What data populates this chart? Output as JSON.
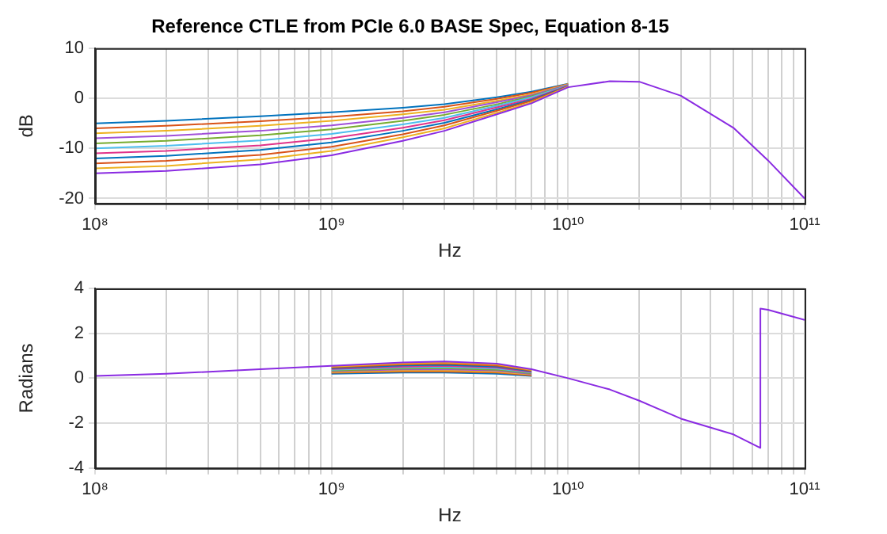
{
  "chart_data": [
    {
      "type": "line",
      "title": "Reference CTLE from PCIe 6.0 BASE Spec, Equation 8-15",
      "xlabel": "Hz",
      "ylabel": "dB",
      "log": "x",
      "grid": true,
      "marker": "none",
      "line_style": "solid",
      "x": [
        100000000.0,
        200000000.0,
        500000000.0,
        1000000000.0,
        2000000000.0,
        3000000000.0,
        5000000000.0,
        7000000000.0,
        10000000000.0,
        15000000000.0,
        20000000000.0,
        30000000000.0,
        50000000000.0,
        70000000000.0,
        100000000000.0
      ],
      "xlim": [
        100000000.0,
        100000000000.0
      ],
      "xticks": [
        {
          "value": 100000000.0,
          "label": "10⁸"
        },
        {
          "value": 200000000.0,
          "label": null
        },
        {
          "value": 300000000.0,
          "label": null
        },
        {
          "value": 400000000.0,
          "label": null
        },
        {
          "value": 500000000.0,
          "label": null
        },
        {
          "value": 600000000.0,
          "label": null
        },
        {
          "value": 700000000.0,
          "label": null
        },
        {
          "value": 800000000.0,
          "label": null
        },
        {
          "value": 900000000.0,
          "label": null
        },
        {
          "value": 1000000000.0,
          "label": "10⁹"
        },
        {
          "value": 2000000000.0,
          "label": null
        },
        {
          "value": 3000000000.0,
          "label": null
        },
        {
          "value": 4000000000.0,
          "label": null
        },
        {
          "value": 5000000000.0,
          "label": null
        },
        {
          "value": 6000000000.0,
          "label": null
        },
        {
          "value": 7000000000.0,
          "label": null
        },
        {
          "value": 8000000000.0,
          "label": null
        },
        {
          "value": 9000000000.0,
          "label": null
        },
        {
          "value": 10000000000.0,
          "label": "10¹⁰"
        },
        {
          "value": 20000000000.0,
          "label": null
        },
        {
          "value": 30000000000.0,
          "label": null
        },
        {
          "value": 40000000000.0,
          "label": null
        },
        {
          "value": 50000000000.0,
          "label": null
        },
        {
          "value": 60000000000.0,
          "label": null
        },
        {
          "value": 70000000000.0,
          "label": null
        },
        {
          "value": 80000000000.0,
          "label": null
        },
        {
          "value": 90000000000.0,
          "label": null
        },
        {
          "value": 100000000000.0,
          "label": "10¹¹"
        }
      ],
      "ylim": [
        -21,
        10
      ],
      "yticks": [
        -20,
        -10,
        0,
        10
      ],
      "series": [
        {
          "color": "#0072bd",
          "values": [
            -5,
            -4.5,
            -3.6,
            -2.8,
            -1.9,
            -1.2,
            0.2,
            1.3,
            2.9,
            null,
            null,
            null,
            null,
            null,
            null
          ]
        },
        {
          "color": "#d95319",
          "values": [
            -6,
            -5.5,
            -4.6,
            -3.7,
            -2.6,
            -1.7,
            -0.1,
            1.1,
            2.8,
            null,
            null,
            null,
            null,
            null,
            null
          ]
        },
        {
          "color": "#edb120",
          "values": [
            -7,
            -6.5,
            -5.5,
            -4.5,
            -3.2,
            -2.3,
            -0.5,
            0.8,
            2.8,
            null,
            null,
            null,
            null,
            null,
            null
          ]
        },
        {
          "color": "#a04fd8",
          "values": [
            -8,
            -7.5,
            -6.5,
            -5.4,
            -3.9,
            -2.8,
            -0.8,
            0.6,
            2.7,
            null,
            null,
            null,
            null,
            null,
            null
          ]
        },
        {
          "color": "#77ac30",
          "values": [
            -9,
            -8.5,
            -7.4,
            -6.2,
            -4.5,
            -3.3,
            -1.2,
            0.4,
            2.6,
            null,
            null,
            null,
            null,
            null,
            null
          ]
        },
        {
          "color": "#4dbeee",
          "values": [
            -10,
            -9.5,
            -8.4,
            -7.1,
            -5.2,
            -3.9,
            -1.5,
            0.2,
            2.6,
            null,
            null,
            null,
            null,
            null,
            null
          ]
        },
        {
          "color": "#e0338a",
          "values": [
            -11,
            -10.5,
            -9.4,
            -8.0,
            -5.9,
            -4.4,
            -1.8,
            -0.1,
            2.5,
            null,
            null,
            null,
            null,
            null,
            null
          ]
        },
        {
          "color": "#0072bd",
          "values": [
            -12,
            -11.5,
            -10.3,
            -8.8,
            -6.5,
            -4.9,
            -2.2,
            -0.3,
            2.4,
            null,
            null,
            null,
            null,
            null,
            null
          ]
        },
        {
          "color": "#d95319",
          "values": [
            -13,
            -12.5,
            -11.3,
            -9.7,
            -7.2,
            -5.4,
            -2.5,
            -0.5,
            2.3,
            null,
            null,
            null,
            null,
            null,
            null
          ]
        },
        {
          "color": "#edb120",
          "values": [
            -14,
            -13.5,
            -12.2,
            -10.5,
            -7.8,
            -6.0,
            -2.9,
            -0.8,
            2.3,
            null,
            null,
            null,
            null,
            null,
            null
          ]
        },
        {
          "color": "#8a2be2",
          "values": [
            -15,
            -14.5,
            -13.2,
            -11.4,
            -8.5,
            -6.5,
            -3.2,
            -1.0,
            2.2,
            3.4,
            3.3,
            0.5,
            -5.9,
            -12.4,
            -20
          ]
        }
      ]
    },
    {
      "type": "line",
      "xlabel": "Hz",
      "ylabel": "Radians",
      "log": "x",
      "grid": true,
      "marker": "none",
      "line_style": "solid",
      "x": [
        100000000.0,
        200000000.0,
        500000000.0,
        1000000000.0,
        2000000000.0,
        3000000000.0,
        5000000000.0,
        7000000000.0,
        10000000000.0,
        15000000000.0,
        20000000000.0,
        30000000000.0,
        50000000000.0,
        65000000000.0,
        65000000000.0,
        70000000000.0,
        100000000000.0
      ],
      "xlim": [
        100000000.0,
        100000000000.0
      ],
      "xticks": [
        {
          "value": 100000000.0,
          "label": "10⁸"
        },
        {
          "value": 200000000.0,
          "label": null
        },
        {
          "value": 300000000.0,
          "label": null
        },
        {
          "value": 400000000.0,
          "label": null
        },
        {
          "value": 500000000.0,
          "label": null
        },
        {
          "value": 600000000.0,
          "label": null
        },
        {
          "value": 700000000.0,
          "label": null
        },
        {
          "value": 800000000.0,
          "label": null
        },
        {
          "value": 900000000.0,
          "label": null
        },
        {
          "value": 1000000000.0,
          "label": "10⁹"
        },
        {
          "value": 2000000000.0,
          "label": null
        },
        {
          "value": 3000000000.0,
          "label": null
        },
        {
          "value": 4000000000.0,
          "label": null
        },
        {
          "value": 5000000000.0,
          "label": null
        },
        {
          "value": 6000000000.0,
          "label": null
        },
        {
          "value": 7000000000.0,
          "label": null
        },
        {
          "value": 8000000000.0,
          "label": null
        },
        {
          "value": 9000000000.0,
          "label": null
        },
        {
          "value": 10000000000.0,
          "label": "10¹⁰"
        },
        {
          "value": 20000000000.0,
          "label": null
        },
        {
          "value": 30000000000.0,
          "label": null
        },
        {
          "value": 40000000000.0,
          "label": null
        },
        {
          "value": 50000000000.0,
          "label": null
        },
        {
          "value": 60000000000.0,
          "label": null
        },
        {
          "value": 70000000000.0,
          "label": null
        },
        {
          "value": 80000000000.0,
          "label": null
        },
        {
          "value": 90000000000.0,
          "label": null
        },
        {
          "value": 100000000000.0,
          "label": "10¹¹"
        }
      ],
      "ylim": [
        -4,
        4
      ],
      "yticks": [
        -4,
        -2,
        0,
        2,
        4
      ],
      "series": [
        {
          "color": "#0072bd",
          "values": [
            null,
            null,
            null,
            0.2,
            0.25,
            0.25,
            0.2,
            0.1,
            null,
            null,
            null,
            null,
            null,
            null,
            null,
            null,
            null
          ]
        },
        {
          "color": "#d95319",
          "values": [
            null,
            null,
            null,
            0.24,
            0.3,
            0.3,
            0.25,
            0.13,
            null,
            null,
            null,
            null,
            null,
            null,
            null,
            null,
            null
          ]
        },
        {
          "color": "#edb120",
          "values": [
            null,
            null,
            null,
            0.27,
            0.34,
            0.35,
            0.29,
            0.16,
            null,
            null,
            null,
            null,
            null,
            null,
            null,
            null,
            null
          ]
        },
        {
          "color": "#a04fd8",
          "values": [
            null,
            null,
            null,
            0.31,
            0.39,
            0.4,
            0.34,
            0.19,
            null,
            null,
            null,
            null,
            null,
            null,
            null,
            null,
            null
          ]
        },
        {
          "color": "#77ac30",
          "values": [
            null,
            null,
            null,
            0.34,
            0.43,
            0.45,
            0.38,
            0.22,
            null,
            null,
            null,
            null,
            null,
            null,
            null,
            null,
            null
          ]
        },
        {
          "color": "#4dbeee",
          "values": [
            null,
            null,
            null,
            0.38,
            0.48,
            0.5,
            0.43,
            0.25,
            null,
            null,
            null,
            null,
            null,
            null,
            null,
            null,
            null
          ]
        },
        {
          "color": "#e0338a",
          "values": [
            null,
            null,
            null,
            0.41,
            0.52,
            0.55,
            0.47,
            0.28,
            null,
            null,
            null,
            null,
            null,
            null,
            null,
            null,
            null
          ]
        },
        {
          "color": "#0072bd",
          "values": [
            null,
            null,
            null,
            0.45,
            0.57,
            0.6,
            0.52,
            0.31,
            null,
            null,
            null,
            null,
            null,
            null,
            null,
            null,
            null
          ]
        },
        {
          "color": "#d95319",
          "values": [
            null,
            null,
            null,
            0.48,
            0.61,
            0.65,
            0.56,
            0.34,
            null,
            null,
            null,
            null,
            null,
            null,
            null,
            null,
            null
          ]
        },
        {
          "color": "#edb120",
          "values": [
            null,
            null,
            null,
            0.52,
            0.66,
            0.7,
            0.61,
            0.37,
            null,
            null,
            null,
            null,
            null,
            null,
            null,
            null,
            null
          ]
        },
        {
          "color": "#8a2be2",
          "values": [
            0.1,
            0.2,
            0.4,
            0.55,
            0.7,
            0.75,
            0.65,
            0.4,
            0,
            -0.5,
            -1.0,
            -1.8,
            -2.5,
            -3.1,
            3.1,
            3.05,
            2.6
          ]
        }
      ]
    }
  ]
}
